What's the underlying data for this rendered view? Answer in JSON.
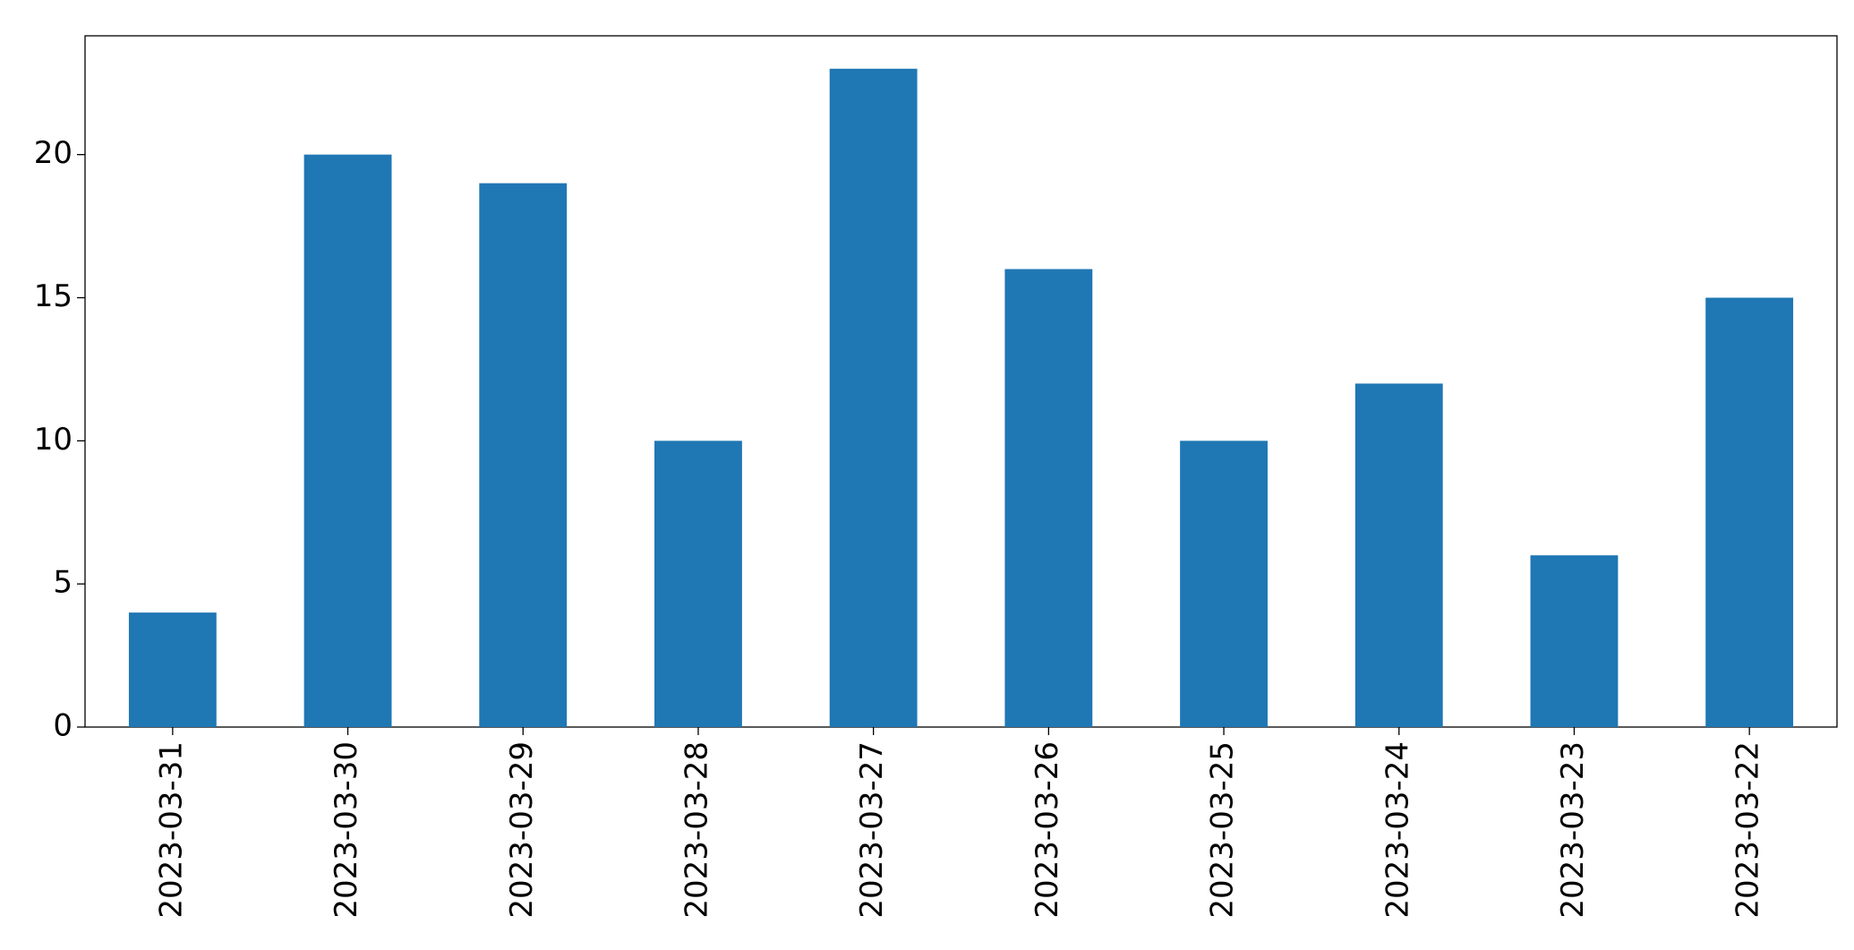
{
  "chart_data": {
    "type": "bar",
    "categories": [
      "2023-03-31",
      "2023-03-30",
      "2023-03-29",
      "2023-03-28",
      "2023-03-27",
      "2023-03-26",
      "2023-03-25",
      "2023-03-24",
      "2023-03-23",
      "2023-03-22"
    ],
    "values": [
      4,
      20,
      19,
      10,
      23,
      16,
      10,
      12,
      6,
      15
    ],
    "color": "#1f77b4",
    "ylim": [
      0,
      24.15
    ],
    "yticks": [
      0,
      5,
      10,
      15,
      20
    ],
    "grid": false
  }
}
